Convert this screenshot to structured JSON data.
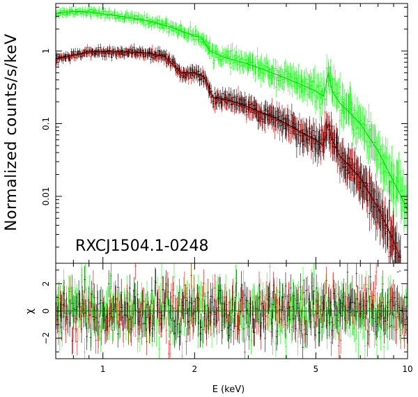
{
  "chart_data": {
    "type": "scatter",
    "title": "",
    "annotation": "RXCJ1504.1-0248",
    "xlabel": "E (keV)",
    "xscale": "log",
    "xlim": [
      0.7,
      10
    ],
    "xticks": [
      {
        "value": 1,
        "label": "1"
      },
      {
        "value": 2,
        "label": "2"
      },
      {
        "value": 5,
        "label": "5"
      },
      {
        "value": 10,
        "label": "10"
      }
    ],
    "panels": [
      {
        "id": "spectrum",
        "ylabel": "Normalized counts/s/keV",
        "yscale": "log",
        "ylim": [
          0.0012,
          4.5
        ],
        "yticks": [
          {
            "value": 0.01,
            "label": "0.01"
          },
          {
            "value": 0.1,
            "label": "0.1"
          },
          {
            "value": 1,
            "label": "1"
          }
        ],
        "series": [
          {
            "name": "green",
            "color": "#00ff00",
            "points": [
              [
                0.7,
                3.3
              ],
              [
                0.8,
                3.5
              ],
              [
                0.9,
                3.45
              ],
              [
                1.0,
                3.25
              ],
              [
                1.2,
                2.9
              ],
              [
                1.4,
                2.6
              ],
              [
                1.6,
                2.25
              ],
              [
                1.8,
                1.9
              ],
              [
                2.0,
                1.6
              ],
              [
                2.1,
                1.55
              ],
              [
                2.25,
                1.0
              ],
              [
                2.5,
                0.82
              ],
              [
                3.0,
                0.66
              ],
              [
                3.5,
                0.52
              ],
              [
                4.0,
                0.42
              ],
              [
                4.5,
                0.34
              ],
              [
                5.0,
                0.28
              ],
              [
                5.3,
                0.24
              ],
              [
                5.5,
                0.5
              ],
              [
                5.65,
                0.28
              ],
              [
                6.0,
                0.19
              ],
              [
                7.0,
                0.1
              ],
              [
                8.0,
                0.042
              ],
              [
                9.0,
                0.016
              ],
              [
                10.0,
                0.0065
              ]
            ]
          },
          {
            "name": "black",
            "color": "#000000",
            "points": [
              [
                0.7,
                0.78
              ],
              [
                0.8,
                0.88
              ],
              [
                0.9,
                0.98
              ],
              [
                1.0,
                0.99
              ],
              [
                1.2,
                0.97
              ],
              [
                1.4,
                0.94
              ],
              [
                1.6,
                0.84
              ],
              [
                1.7,
                0.64
              ],
              [
                1.8,
                0.5
              ],
              [
                2.0,
                0.5
              ],
              [
                2.15,
                0.44
              ],
              [
                2.3,
                0.23
              ],
              [
                2.6,
                0.21
              ],
              [
                3.0,
                0.17
              ],
              [
                3.5,
                0.13
              ],
              [
                4.0,
                0.1
              ],
              [
                4.5,
                0.075
              ],
              [
                5.0,
                0.06
              ],
              [
                5.3,
                0.05
              ],
              [
                5.5,
                0.1
              ],
              [
                5.65,
                0.06
              ],
              [
                6.0,
                0.036
              ],
              [
                7.0,
                0.018
              ],
              [
                8.0,
                0.007
              ],
              [
                9.0,
                0.0025
              ],
              [
                9.5,
                0.0013
              ]
            ]
          },
          {
            "name": "red",
            "color": "#dd0000",
            "points": [
              [
                0.7,
                0.75
              ],
              [
                0.8,
                0.86
              ],
              [
                0.9,
                0.95
              ],
              [
                1.0,
                0.96
              ],
              [
                1.2,
                0.95
              ],
              [
                1.4,
                0.92
              ],
              [
                1.6,
                0.82
              ],
              [
                1.7,
                0.63
              ],
              [
                1.8,
                0.49
              ],
              [
                2.0,
                0.49
              ],
              [
                2.15,
                0.43
              ],
              [
                2.3,
                0.22
              ],
              [
                2.6,
                0.2
              ],
              [
                3.0,
                0.16
              ],
              [
                3.5,
                0.125
              ],
              [
                4.0,
                0.095
              ],
              [
                4.5,
                0.072
              ],
              [
                5.0,
                0.058
              ],
              [
                5.3,
                0.048
              ],
              [
                5.5,
                0.1
              ],
              [
                5.65,
                0.058
              ],
              [
                6.0,
                0.035
              ],
              [
                7.0,
                0.017
              ],
              [
                8.0,
                0.0068
              ],
              [
                9.0,
                0.0024
              ],
              [
                9.5,
                0.0013
              ]
            ]
          }
        ]
      },
      {
        "id": "residuals",
        "ylabel": "χ",
        "yscale": "linear",
        "ylim": [
          -3.5,
          3.5
        ],
        "yticks": [
          {
            "value": -2,
            "label": "−2"
          },
          {
            "value": 0,
            "label": "0"
          },
          {
            "value": 2,
            "label": "2"
          }
        ],
        "reference_line": 0,
        "series": [
          {
            "name": "green",
            "color": "#00ff00",
            "scatter_sigma": 1.0
          },
          {
            "name": "red",
            "color": "#dd0000",
            "scatter_sigma": 1.0
          },
          {
            "name": "black",
            "color": "#000000",
            "scatter_sigma": 1.0
          }
        ]
      }
    ]
  }
}
